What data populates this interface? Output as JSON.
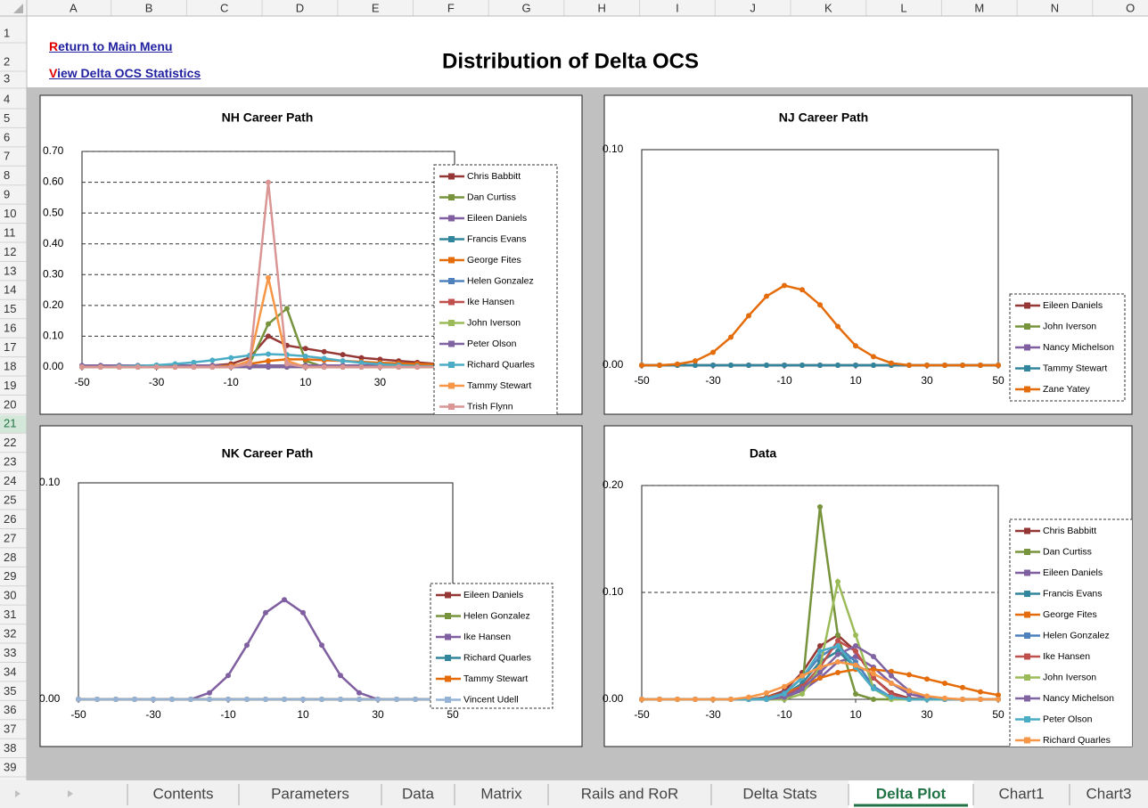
{
  "columns": [
    "A",
    "B",
    "C",
    "D",
    "E",
    "F",
    "G",
    "H",
    "I",
    "J",
    "K",
    "L",
    "M",
    "N",
    "O"
  ],
  "rows": [
    1,
    2,
    3,
    4,
    5,
    6,
    7,
    8,
    9,
    10,
    11,
    12,
    13,
    14,
    15,
    16,
    17,
    18,
    19,
    20,
    21,
    22,
    23,
    24,
    25,
    26,
    27,
    28,
    29,
    30,
    31,
    32,
    33,
    34,
    35,
    36,
    37,
    38,
    39
  ],
  "active_row": 21,
  "links": [
    "Return to Main Menu",
    "View Delta OCS Statistics"
  ],
  "title": "Distribution of Delta OCS",
  "tabs": [
    "Contents",
    "Parameters",
    "Data",
    "Matrix",
    "Rails and RoR",
    "Delta Stats",
    "Delta Plot",
    "Chart1",
    "Chart3"
  ],
  "active_tab": "Delta Plot",
  "chart_data": [
    {
      "type": "line",
      "title": "NH Career Path",
      "grid": true,
      "x": [
        -50,
        -45,
        -40,
        -35,
        -30,
        -25,
        -20,
        -15,
        -10,
        -5,
        0,
        5,
        10,
        15,
        20,
        25,
        30,
        35,
        40,
        45,
        50
      ],
      "xlim": [
        -50,
        50
      ],
      "xticks": [
        -50,
        -30,
        -10,
        10,
        30
      ],
      "ylim": [
        0,
        0.7
      ],
      "yticks": [
        {
          "value": 0,
          "label": "0.00"
        },
        {
          "value": 0.1,
          "label": "0.10"
        },
        {
          "value": 0.2,
          "label": "0.20"
        },
        {
          "value": 0.3,
          "label": "0.30"
        },
        {
          "value": 0.4,
          "label": "0.40"
        },
        {
          "value": 0.5,
          "label": "0.50"
        },
        {
          "value": 0.6,
          "label": "0.60"
        },
        {
          "value": 0.7,
          "label": "0.70"
        }
      ],
      "series": [
        {
          "name": "Chris Babbitt",
          "color": "#953735",
          "values": [
            0,
            0,
            0,
            0,
            0,
            0,
            0.002,
            0.005,
            0.01,
            0.03,
            0.1,
            0.07,
            0.06,
            0.05,
            0.04,
            0.03,
            0.025,
            0.02,
            0.015,
            0.01,
            0.008
          ]
        },
        {
          "name": "Dan Curtiss",
          "color": "#77933c",
          "values": [
            0,
            0,
            0,
            0,
            0,
            0,
            0,
            0,
            0,
            0.01,
            0.14,
            0.19,
            0.02,
            0,
            0,
            0,
            0,
            0,
            0,
            0,
            0
          ]
        },
        {
          "name": "Eileen Daniels",
          "color": "#7f5fa0",
          "values": [
            0.005,
            0.005,
            0.005,
            0.005,
            0.005,
            0.005,
            0.005,
            0.005,
            0.005,
            0.005,
            0.005,
            0.005,
            0.005,
            0.005,
            0.005,
            0.005,
            0.005,
            0.005,
            0.005,
            0.005,
            0.005
          ]
        },
        {
          "name": "Francis Evans",
          "color": "#31859c",
          "values": [
            0,
            0,
            0,
            0,
            0,
            0,
            0,
            0,
            0,
            0,
            0,
            0,
            0,
            0,
            0,
            0,
            0,
            0,
            0,
            0,
            0
          ]
        },
        {
          "name": "George Fites",
          "color": "#e46c0a",
          "values": [
            0,
            0,
            0,
            0,
            0,
            0,
            0,
            0,
            0.005,
            0.01,
            0.02,
            0.025,
            0.025,
            0.022,
            0.02,
            0.017,
            0.014,
            0.012,
            0.01,
            0.008,
            0.006
          ]
        },
        {
          "name": "Helen Gonzalez",
          "color": "#4f81bd",
          "values": [
            0,
            0,
            0,
            0,
            0,
            0,
            0,
            0,
            0,
            0,
            0,
            0,
            0,
            0,
            0,
            0,
            0,
            0,
            0,
            0,
            0
          ]
        },
        {
          "name": "Ike Hansen",
          "color": "#c0504d",
          "values": [
            0,
            0,
            0,
            0,
            0,
            0,
            0,
            0,
            0,
            0,
            0,
            0,
            0,
            0,
            0,
            0,
            0,
            0,
            0,
            0,
            0
          ]
        },
        {
          "name": "John Iverson",
          "color": "#9bbb59",
          "values": [
            0,
            0,
            0,
            0,
            0,
            0,
            0,
            0,
            0,
            0,
            0,
            0,
            0,
            0,
            0,
            0,
            0,
            0,
            0,
            0,
            0
          ]
        },
        {
          "name": "Peter Olson",
          "color": "#8064a2",
          "values": [
            0,
            0,
            0,
            0,
            0,
            0,
            0,
            0,
            0,
            0,
            0,
            0,
            0,
            0,
            0,
            0,
            0,
            0,
            0,
            0,
            0
          ]
        },
        {
          "name": "Richard Quarles",
          "color": "#4bacc6",
          "values": [
            0,
            0,
            0.002,
            0.004,
            0.006,
            0.01,
            0.015,
            0.022,
            0.03,
            0.038,
            0.042,
            0.04,
            0.035,
            0.028,
            0.02,
            0.014,
            0.009,
            0.006,
            0.003,
            0.002,
            0
          ]
        },
        {
          "name": "Tammy Stewart",
          "color": "#f79646",
          "values": [
            0,
            0,
            0,
            0,
            0,
            0,
            0,
            0,
            0,
            0.02,
            0.29,
            0.02,
            0,
            0,
            0,
            0,
            0,
            0,
            0,
            0,
            0
          ]
        },
        {
          "name": "Trish Flynn",
          "color": "#d99694",
          "values": [
            0,
            0,
            0,
            0,
            0,
            0,
            0,
            0,
            0,
            0.01,
            0.6,
            0.01,
            0,
            0,
            0,
            0,
            0,
            0,
            0,
            0,
            0
          ]
        }
      ]
    },
    {
      "type": "line",
      "title": "NJ Career Path",
      "grid": false,
      "x": [
        -50,
        -45,
        -40,
        -35,
        -30,
        -25,
        -20,
        -15,
        -10,
        -5,
        0,
        5,
        10,
        15,
        20,
        25,
        30,
        35,
        40,
        45,
        50
      ],
      "xlim": [
        -50,
        50
      ],
      "xticks": [
        -50,
        -30,
        -10,
        10,
        30,
        50
      ],
      "ylim": [
        0,
        0.1
      ],
      "yticks": [
        {
          "value": 0,
          "label": "0.00"
        },
        {
          "value": 0.1,
          "label": "0.10"
        }
      ],
      "series": [
        {
          "name": "Eileen Daniels",
          "color": "#953735",
          "values": [
            0,
            0,
            0,
            0,
            0,
            0,
            0,
            0,
            0,
            0,
            0,
            0,
            0,
            0,
            0,
            0,
            0,
            0,
            0,
            0,
            0
          ]
        },
        {
          "name": "John Iverson",
          "color": "#77933c",
          "values": [
            0,
            0,
            0,
            0,
            0,
            0,
            0,
            0,
            0,
            0,
            0,
            0,
            0,
            0,
            0,
            0,
            0,
            0,
            0,
            0,
            0
          ]
        },
        {
          "name": "Nancy Michelson",
          "color": "#7f5fa0",
          "values": [
            0,
            0,
            0,
            0,
            0,
            0,
            0,
            0,
            0,
            0,
            0,
            0,
            0,
            0,
            0,
            0,
            0,
            0,
            0,
            0,
            0
          ]
        },
        {
          "name": "Tammy Stewart",
          "color": "#31859c",
          "values": [
            0,
            0,
            0,
            0,
            0,
            0,
            0,
            0,
            0,
            0,
            0,
            0,
            0,
            0,
            0,
            0,
            0,
            0,
            0,
            0,
            0
          ]
        },
        {
          "name": "Zane Yatey",
          "color": "#e46c0a",
          "values": [
            0,
            0,
            0.0005,
            0.002,
            0.006,
            0.013,
            0.023,
            0.032,
            0.037,
            0.035,
            0.028,
            0.018,
            0.009,
            0.004,
            0.001,
            0,
            0,
            0,
            0,
            0,
            0
          ]
        }
      ]
    },
    {
      "type": "line",
      "title": "NK Career Path",
      "grid": false,
      "x": [
        -50,
        -45,
        -40,
        -35,
        -30,
        -25,
        -20,
        -15,
        -10,
        -5,
        0,
        5,
        10,
        15,
        20,
        25,
        30,
        35,
        40,
        45,
        50
      ],
      "xlim": [
        -50,
        50
      ],
      "xticks": [
        -50,
        -30,
        -10,
        10,
        30,
        50
      ],
      "ylim": [
        0,
        0.1
      ],
      "yticks": [
        {
          "value": 0,
          "label": "0.00"
        },
        {
          "value": 0.1,
          "label": "0.10"
        }
      ],
      "series": [
        {
          "name": "Eileen Daniels",
          "color": "#953735",
          "values": [
            0,
            0,
            0,
            0,
            0,
            0,
            0,
            0,
            0,
            0,
            0,
            0,
            0,
            0,
            0,
            0,
            0,
            0,
            0,
            0,
            0
          ]
        },
        {
          "name": "Helen Gonzalez",
          "color": "#77933c",
          "values": [
            0,
            0,
            0,
            0,
            0,
            0,
            0,
            0,
            0,
            0,
            0,
            0,
            0,
            0,
            0,
            0,
            0,
            0,
            0,
            0,
            0
          ]
        },
        {
          "name": "Ike Hansen",
          "color": "#7f5fa0",
          "values": [
            0,
            0,
            0,
            0,
            0,
            0,
            0,
            0.003,
            0.011,
            0.025,
            0.04,
            0.046,
            0.04,
            0.025,
            0.011,
            0.003,
            0,
            0,
            0,
            0,
            0
          ]
        },
        {
          "name": "Richard Quarles",
          "color": "#31859c",
          "values": [
            0,
            0,
            0,
            0,
            0,
            0,
            0,
            0,
            0,
            0,
            0,
            0,
            0,
            0,
            0,
            0,
            0,
            0,
            0,
            0,
            0
          ]
        },
        {
          "name": "Tammy Stewart",
          "color": "#e46c0a",
          "values": [
            0,
            0,
            0,
            0,
            0,
            0,
            0,
            0,
            0,
            0,
            0,
            0,
            0,
            0,
            0,
            0,
            0,
            0,
            0,
            0,
            0
          ]
        },
        {
          "name": "Vincent Udell",
          "color": "#95b3d7",
          "values": [
            0,
            0,
            0,
            0,
            0,
            0,
            0,
            0,
            0,
            0,
            0,
            0,
            0,
            0,
            0,
            0,
            0,
            0,
            0,
            0,
            0
          ]
        }
      ]
    },
    {
      "type": "line",
      "title": "Data",
      "grid": true,
      "x": [
        -50,
        -45,
        -40,
        -35,
        -30,
        -25,
        -20,
        -15,
        -10,
        -5,
        0,
        5,
        10,
        15,
        20,
        25,
        30,
        35,
        40,
        45,
        50
      ],
      "xlim": [
        -50,
        50
      ],
      "xticks": [
        -50,
        -30,
        -10,
        10,
        30,
        50
      ],
      "ylim": [
        0,
        0.2
      ],
      "yticks": [
        {
          "value": 0,
          "label": "0.00"
        },
        {
          "value": 0.1,
          "label": "0.10"
        },
        {
          "value": 0.2,
          "label": "0.20"
        }
      ],
      "series": [
        {
          "name": "Chris Babbitt",
          "color": "#953735",
          "values": [
            0,
            0,
            0,
            0,
            0,
            0,
            0,
            0.002,
            0.008,
            0.025,
            0.05,
            0.06,
            0.045,
            0.02,
            0.006,
            0.001,
            0,
            0,
            0,
            0,
            0
          ]
        },
        {
          "name": "Dan Curtiss",
          "color": "#77933c",
          "values": [
            0,
            0,
            0,
            0,
            0,
            0,
            0,
            0,
            0,
            0.01,
            0.18,
            0.06,
            0.005,
            0,
            0,
            0,
            0,
            0,
            0,
            0,
            0
          ]
        },
        {
          "name": "Eileen Daniels",
          "color": "#7f5fa0",
          "values": [
            0,
            0,
            0,
            0,
            0,
            0,
            0,
            0,
            0.002,
            0.008,
            0.02,
            0.035,
            0.04,
            0.03,
            0.015,
            0.005,
            0.001,
            0,
            0,
            0,
            0
          ]
        },
        {
          "name": "Francis Evans",
          "color": "#31859c",
          "values": [
            0,
            0,
            0,
            0,
            0,
            0,
            0,
            0,
            0.004,
            0.015,
            0.035,
            0.045,
            0.03,
            0.01,
            0.002,
            0,
            0,
            0,
            0,
            0,
            0
          ]
        },
        {
          "name": "George Fites",
          "color": "#e46c0a",
          "values": [
            0,
            0,
            0,
            0,
            0,
            0,
            0,
            0.002,
            0.006,
            0.012,
            0.02,
            0.025,
            0.028,
            0.028,
            0.026,
            0.023,
            0.019,
            0.015,
            0.011,
            0.007,
            0.004
          ]
        },
        {
          "name": "Helen Gonzalez",
          "color": "#4f81bd",
          "values": [
            0,
            0,
            0,
            0,
            0,
            0,
            0,
            0.001,
            0.006,
            0.02,
            0.04,
            0.05,
            0.035,
            0.012,
            0.002,
            0,
            0,
            0,
            0,
            0,
            0
          ]
        },
        {
          "name": "Ike Hansen",
          "color": "#c0504d",
          "values": [
            0,
            0,
            0,
            0,
            0,
            0,
            0,
            0,
            0.003,
            0.012,
            0.03,
            0.055,
            0.045,
            0.02,
            0.005,
            0,
            0,
            0,
            0,
            0,
            0
          ]
        },
        {
          "name": "John Iverson",
          "color": "#9bbb59",
          "values": [
            0,
            0,
            0,
            0,
            0,
            0,
            0,
            0,
            0,
            0.005,
            0.03,
            0.11,
            0.06,
            0.01,
            0,
            0,
            0,
            0,
            0,
            0,
            0
          ]
        },
        {
          "name": "Nancy Michelson",
          "color": "#8064a2",
          "values": [
            0,
            0,
            0,
            0,
            0,
            0,
            0,
            0,
            0.002,
            0.01,
            0.025,
            0.042,
            0.05,
            0.04,
            0.022,
            0.008,
            0.002,
            0,
            0,
            0,
            0
          ]
        },
        {
          "name": "Peter Olson",
          "color": "#4bacc6",
          "values": [
            0,
            0,
            0,
            0,
            0,
            0,
            0,
            0,
            0.005,
            0.02,
            0.045,
            0.05,
            0.03,
            0.01,
            0.002,
            0,
            0,
            0,
            0,
            0,
            0
          ]
        },
        {
          "name": "Richard Quarles",
          "color": "#f79646",
          "values": [
            0,
            0,
            0,
            0,
            0,
            0,
            0.002,
            0.006,
            0.012,
            0.022,
            0.03,
            0.035,
            0.032,
            0.024,
            0.015,
            0.008,
            0.003,
            0.001,
            0,
            0,
            0
          ]
        }
      ]
    }
  ]
}
